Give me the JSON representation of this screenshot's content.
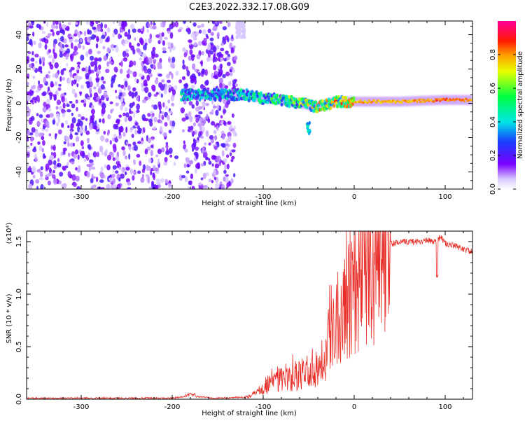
{
  "chart_data": [
    {
      "type": "heatmap",
      "title": "C2E3.2022.332.17.08.G09",
      "xlabel": "Height of straight line (km)",
      "ylabel": "Frequency (Hz)",
      "xlim": [
        -360,
        130
      ],
      "ylim": [
        -50,
        48
      ],
      "xticks": [
        -300,
        -200,
        -100,
        0,
        100
      ],
      "yticks": [
        -40,
        -20,
        0,
        20,
        40
      ],
      "colorbar": {
        "label": "Normalized spectral amplitude",
        "range": [
          0,
          1
        ],
        "ticks": [
          0.0,
          0.2,
          0.4,
          0.6,
          0.8
        ],
        "tick_labels": [
          "0.0",
          "0.2",
          "0.4",
          "0.6",
          "0.8"
        ]
      },
      "noise_region_km": [
        -360,
        -130
      ],
      "signal_ridge": [
        {
          "x": -190,
          "f": 5,
          "amp": 0.45
        },
        {
          "x": -160,
          "f": 5,
          "amp": 0.4
        },
        {
          "x": -120,
          "f": 5,
          "amp": 0.45
        },
        {
          "x": -100,
          "f": 3,
          "amp": 0.5
        },
        {
          "x": -80,
          "f": 2,
          "amp": 0.55
        },
        {
          "x": -60,
          "f": 0,
          "amp": 0.6
        },
        {
          "x": -40,
          "f": -2,
          "amp": 0.7
        },
        {
          "x": -20,
          "f": 1,
          "amp": 0.75
        },
        {
          "x": 0,
          "f": 1,
          "amp": 0.8
        },
        {
          "x": 50,
          "f": 1,
          "amp": 0.8
        },
        {
          "x": 100,
          "f": 2,
          "amp": 0.85
        },
        {
          "x": 130,
          "f": 2,
          "amp": 0.8
        }
      ]
    },
    {
      "type": "line",
      "xlabel": "Height of straight line (km)",
      "ylabel": "SNR (10 * v/v)",
      "scale_label": "(x10⁴)",
      "xlim": [
        -360,
        130
      ],
      "ylim": [
        0,
        1.6
      ],
      "xticks": [
        -300,
        -200,
        -100,
        0,
        100
      ],
      "yticks": [
        0.0,
        0.5,
        1.0,
        1.5
      ],
      "ytick_labels": [
        "0.0",
        "0.5",
        "1.0",
        "1.5"
      ],
      "color": "#e8302a",
      "series": [
        {
          "name": "SNR",
          "x": [
            -360,
            -300,
            -200,
            -180,
            -150,
            -120,
            -110,
            -100,
            -90,
            -80,
            -70,
            -60,
            -50,
            -40,
            -30,
            -20,
            -10,
            0,
            10,
            20,
            30,
            40,
            50,
            60,
            70,
            80,
            90,
            95,
            100,
            110,
            120,
            130
          ],
          "y": [
            0.01,
            0.01,
            0.01,
            0.03,
            0.01,
            0.02,
            0.05,
            0.12,
            0.18,
            0.2,
            0.18,
            0.22,
            0.28,
            0.32,
            0.5,
            0.8,
            1.0,
            1.15,
            1.3,
            1.4,
            1.46,
            1.48,
            1.49,
            1.5,
            1.5,
            1.51,
            1.5,
            1.55,
            1.48,
            1.46,
            1.43,
            1.4
          ]
        }
      ]
    }
  ]
}
